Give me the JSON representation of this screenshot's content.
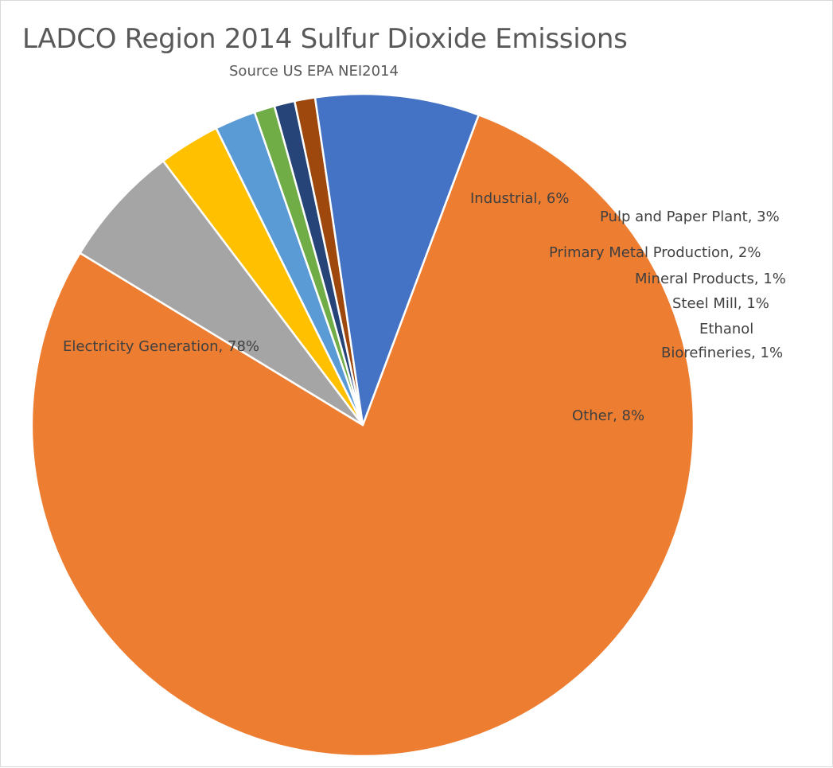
{
  "chart_data": {
    "type": "pie",
    "title": "LADCO Region 2014 Sulfur Dioxide Emissions",
    "subtitle": "Source US EPA NEI2014",
    "start_angle_deg": 20.5,
    "slices": [
      {
        "name": "Electricity Generation",
        "value": 78,
        "label": "Electricity Generation, 78%",
        "color": "#ED7D31"
      },
      {
        "name": "Industrial",
        "value": 6,
        "label": "Industrial, 6%",
        "color": "#A5A5A5"
      },
      {
        "name": "Pulp and Paper Plant",
        "value": 3,
        "label": "Pulp and Paper Plant, 3%",
        "color": "#FFC000"
      },
      {
        "name": "Primary Metal Production",
        "value": 2,
        "label": "Primary Metal Production, 2%",
        "color": "#5B9BD5"
      },
      {
        "name": "Mineral Products",
        "value": 1,
        "label": "Mineral Products, 1%",
        "color": "#70AD47"
      },
      {
        "name": "Steel Mill",
        "value": 1,
        "label": "Steel Mill, 1%",
        "color": "#264478"
      },
      {
        "name": "Ethanol Biorefineries",
        "value": 1,
        "label_lines": [
          "Ethanol",
          "Biorefineries, 1%"
        ],
        "color": "#9E480E"
      },
      {
        "name": "Other",
        "value": 8,
        "label": "Other, 8%",
        "color": "#4472C4"
      }
    ]
  }
}
